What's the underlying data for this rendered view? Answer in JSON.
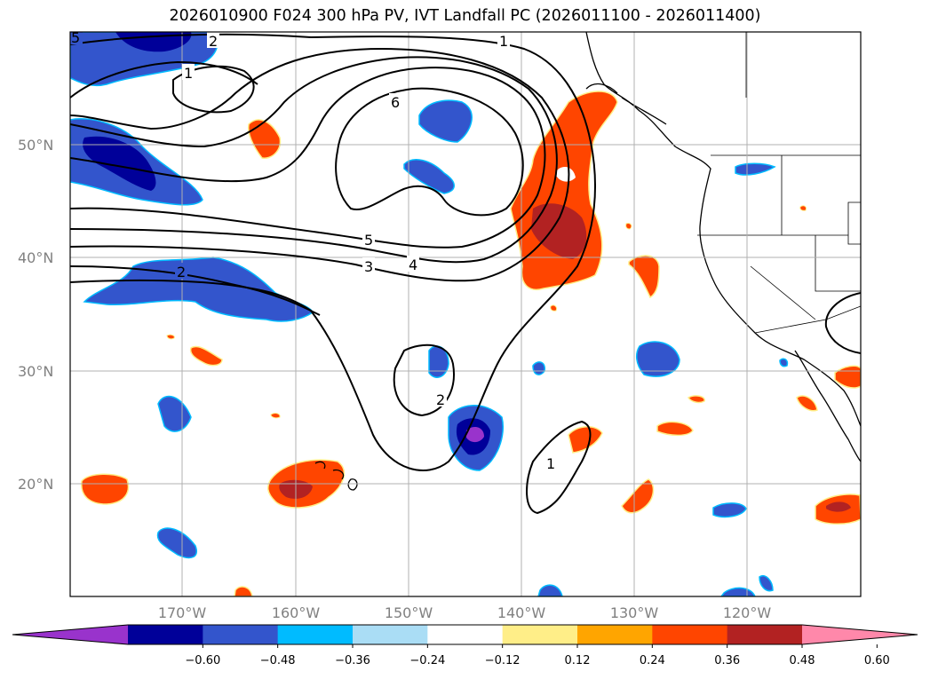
{
  "title": "2026010900 F024 300 hPa PV, IVT Landfall PC (2026011100 - 2026011400)",
  "map": {
    "lon_range": [
      -180,
      -110
    ],
    "lat_range": [
      10,
      60
    ],
    "lat_ticks": [
      "50°N",
      "40°N",
      "30°N",
      "20°N"
    ],
    "lon_ticks": [
      "170°W",
      "160°W",
      "150°W",
      "140°W",
      "130°W",
      "120°W"
    ],
    "grid": true
  },
  "contour_labels": [
    "5",
    "2",
    "1",
    "6",
    "5",
    "3",
    "4",
    "2",
    "2",
    "1",
    "1"
  ],
  "colorbar": {
    "ticks": [
      "−0.60",
      "−0.48",
      "−0.36",
      "−0.24",
      "−0.12",
      "0.12",
      "0.24",
      "0.36",
      "0.48",
      "0.60"
    ],
    "colors": [
      "#9933cc",
      "#000099",
      "#3355cc",
      "#00bbff",
      "#aaddf5",
      "#ffffff",
      "#ffee88",
      "#ffa500",
      "#ff4500",
      "#b22222",
      "#ff88aa"
    ],
    "extend": "both"
  }
}
